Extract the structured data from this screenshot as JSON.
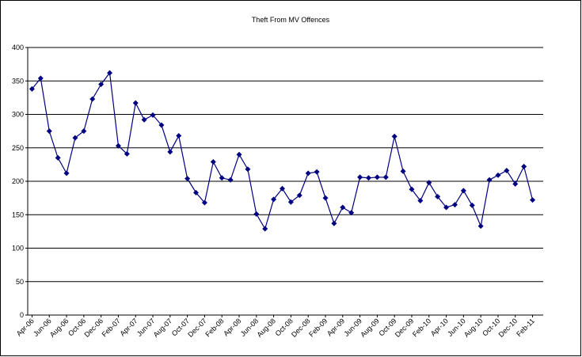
{
  "chart_data": {
    "type": "line",
    "title": "Theft From MV Offences",
    "categories": [
      "Apr-06",
      null,
      "Jun-06",
      null,
      "Aug-06",
      null,
      "Oct-06",
      null,
      "Dec-06",
      null,
      "Feb-07",
      null,
      "Apr-07",
      null,
      "Jun-07",
      null,
      "Aug-07",
      null,
      "Oct-07",
      null,
      "Dec-07",
      null,
      "Feb-08",
      null,
      "Apr-08",
      null,
      "Jun-08",
      null,
      "Aug-08",
      null,
      "Oct-08",
      null,
      "Dec-08",
      null,
      "Feb-09",
      null,
      "Apr-09",
      null,
      "Jun-09",
      null,
      "Aug-09",
      null,
      "Oct-09",
      null,
      "Dec-09",
      null,
      "Feb-10",
      null,
      "Apr-10",
      null,
      "Jun-10",
      null,
      "Aug-10",
      null,
      "Oct-10",
      null,
      "Dec-10",
      null,
      "Feb-11"
    ],
    "values": [
      338,
      354,
      275,
      235,
      212,
      265,
      275,
      323,
      345,
      362,
      253,
      241,
      317,
      292,
      299,
      284,
      244,
      268,
      204,
      183,
      168,
      229,
      205,
      202,
      240,
      218,
      151,
      129,
      173,
      189,
      169,
      179,
      212,
      214,
      175,
      137,
      161,
      153,
      206,
      205,
      206,
      206,
      267,
      215,
      188,
      171,
      198,
      177,
      161,
      165,
      186,
      164,
      133,
      202,
      209,
      216,
      196,
      222,
      172
    ],
    "color": "#000080",
    "ylim": [
      0,
      400
    ],
    "yticks": [
      0,
      50,
      100,
      150,
      200,
      250,
      300,
      350,
      400
    ],
    "grid": true
  }
}
